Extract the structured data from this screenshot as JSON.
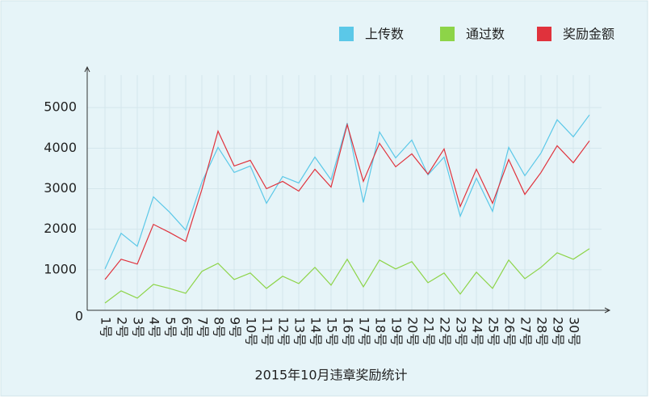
{
  "chart_data": {
    "type": "line",
    "title": "2015年10月违章奖励统计",
    "categories": [
      "1号",
      "2号",
      "3号",
      "4号",
      "5号",
      "6号",
      "7号",
      "8号",
      "9号",
      "10号",
      "11号",
      "12号",
      "13号",
      "14号",
      "15号",
      "16号",
      "17号",
      "18号",
      "19号",
      "20号",
      "21号",
      "22号",
      "23号",
      "24号",
      "25号",
      "26号",
      "27号",
      "28号",
      "29号",
      "30号",
      null
    ],
    "series": [
      {
        "name": "上传数",
        "color": "#5bc8e8",
        "values": [
          1020,
          1900,
          1580,
          2800,
          2420,
          1980,
          3160,
          4020,
          3400,
          3560,
          2640,
          3300,
          3140,
          3780,
          3220,
          4620,
          2660,
          4400,
          3760,
          4200,
          3340,
          3780,
          2320,
          3260,
          2440,
          4020,
          3320,
          3880,
          4700,
          4280,
          4820
        ]
      },
      {
        "name": "通过数",
        "color": "#8dd448",
        "values": [
          180,
          480,
          300,
          640,
          540,
          420,
          960,
          1160,
          760,
          920,
          540,
          840,
          660,
          1060,
          620,
          1260,
          580,
          1240,
          1020,
          1200,
          680,
          920,
          400,
          940,
          540,
          1240,
          780,
          1060,
          1420,
          1260,
          1520
        ]
      },
      {
        "name": "奖励金额",
        "color": "#e0323c",
        "values": [
          760,
          1260,
          1140,
          2120,
          1920,
          1700,
          2980,
          4420,
          3560,
          3700,
          3000,
          3180,
          2940,
          3480,
          3040,
          4580,
          3180,
          4120,
          3540,
          3860,
          3360,
          3980,
          2560,
          3480,
          2640,
          3720,
          2860,
          3400,
          4060,
          3640,
          4180
        ]
      }
    ],
    "ylim": [
      0,
      6000
    ],
    "yticks": [
      0,
      1000,
      2000,
      3000,
      4000,
      5000
    ],
    "grid": true
  }
}
